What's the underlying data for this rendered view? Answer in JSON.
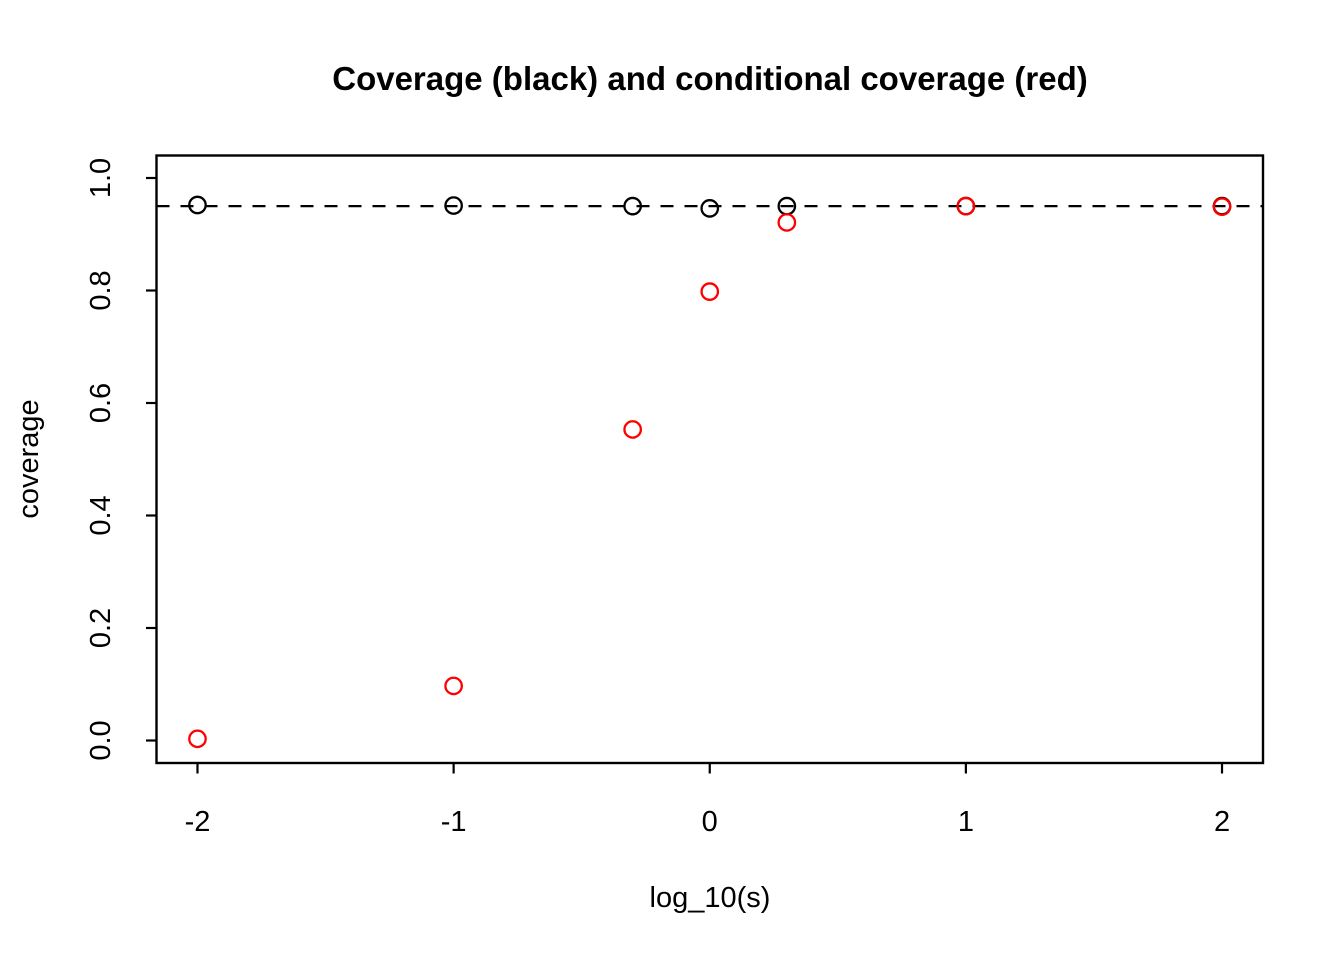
{
  "chart_data": {
    "type": "scatter",
    "title": "Coverage (black) and conditional coverage (red)",
    "xlabel": "log_10(s)",
    "ylabel": "coverage",
    "x_ticks": [
      -2,
      -1,
      0,
      1,
      2
    ],
    "y_ticks": [
      0.0,
      0.2,
      0.4,
      0.6,
      0.8,
      1.0
    ],
    "xlim": [
      -2.16,
      2.16
    ],
    "ylim": [
      -0.04,
      1.04
    ],
    "grid": false,
    "legend_position": "none (series identified in title)",
    "background_color": "#ffffff",
    "axis_color": "#000000",
    "reference_line": {
      "y": 0.95,
      "style": "dashed",
      "color": "#000000"
    },
    "x": [
      -2,
      -1,
      -0.301,
      0,
      0.301,
      1,
      2
    ],
    "series": [
      {
        "name": "coverage (black)",
        "color": "#000000",
        "marker": "open-circle",
        "values": [
          0.952,
          0.951,
          0.95,
          0.946,
          0.95,
          0.95,
          0.95
        ]
      },
      {
        "name": "conditional coverage (red)",
        "color": "#ff0000",
        "marker": "open-circle",
        "values": [
          0.003,
          0.097,
          0.553,
          0.798,
          0.921,
          0.95,
          0.949
        ]
      }
    ]
  }
}
